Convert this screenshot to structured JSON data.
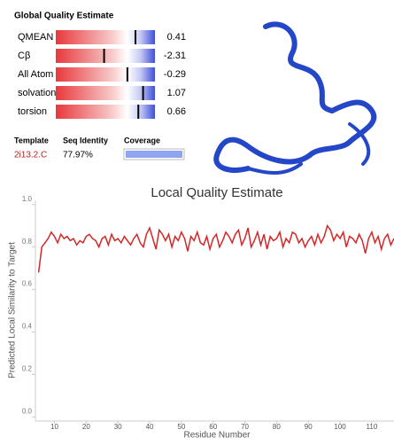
{
  "global_quality": {
    "title": "Global Quality Estimate",
    "zlim": [
      -6.5,
      2.1
    ],
    "rows": [
      {
        "label": "QMEAN",
        "value": 0.41
      },
      {
        "label": "Cβ",
        "value": -2.31
      },
      {
        "label": "All Atom",
        "value": -0.29
      },
      {
        "label": "solvation",
        "value": 1.07
      },
      {
        "label": "torsion",
        "value": 0.66
      }
    ]
  },
  "template": {
    "headers": [
      "Template",
      "Seq Identity",
      "Coverage"
    ],
    "id": "2i13.2.C",
    "identity": "77.97%"
  },
  "chart_data": {
    "type": "line",
    "title": "Local Quality Estimate",
    "x_label": "Residue Number",
    "y_label": "Predicted Local Similarity to Target",
    "xlim": [
      4,
      117
    ],
    "xticks": [
      10,
      20,
      30,
      40,
      50,
      60,
      70,
      80,
      90,
      100,
      110
    ],
    "ylim": [
      -0.02,
      1.02
    ],
    "yticks": [
      {
        "value": 0,
        "label": "0.0"
      },
      0.2,
      0.4,
      0.6,
      0.8,
      {
        "value": 1,
        "label": "1.0"
      }
    ],
    "x": [
      5,
      6,
      7,
      8,
      9,
      10,
      11,
      12,
      13,
      14,
      15,
      16,
      17,
      18,
      19,
      20,
      21,
      22,
      23,
      24,
      25,
      26,
      27,
      28,
      29,
      30,
      31,
      32,
      33,
      34,
      35,
      36,
      37,
      38,
      39,
      40,
      41,
      42,
      43,
      44,
      45,
      46,
      47,
      48,
      49,
      50,
      51,
      52,
      53,
      54,
      55,
      56,
      57,
      58,
      59,
      60,
      61,
      62,
      63,
      64,
      65,
      66,
      67,
      68,
      69,
      70,
      71,
      72,
      73,
      74,
      75,
      76,
      77,
      78,
      79,
      80,
      81,
      82,
      83,
      84,
      85,
      86,
      87,
      88,
      89,
      90,
      91,
      92,
      93,
      94,
      95,
      96,
      97,
      98,
      99,
      100,
      101,
      102,
      103,
      104,
      105,
      106,
      107,
      108,
      109,
      110,
      111,
      112,
      113,
      114,
      115,
      116,
      117
    ],
    "series": [
      {
        "color": "#d62728",
        "values": [
          0.68,
          0.8,
          0.82,
          0.84,
          0.87,
          0.85,
          0.82,
          0.86,
          0.84,
          0.85,
          0.83,
          0.84,
          0.81,
          0.83,
          0.82,
          0.85,
          0.86,
          0.84,
          0.83,
          0.8,
          0.84,
          0.85,
          0.81,
          0.86,
          0.83,
          0.84,
          0.82,
          0.85,
          0.83,
          0.81,
          0.84,
          0.86,
          0.82,
          0.8,
          0.86,
          0.89,
          0.84,
          0.79,
          0.88,
          0.86,
          0.83,
          0.86,
          0.8,
          0.85,
          0.83,
          0.87,
          0.84,
          0.78,
          0.85,
          0.83,
          0.87,
          0.82,
          0.81,
          0.85,
          0.79,
          0.84,
          0.86,
          0.8,
          0.83,
          0.87,
          0.85,
          0.82,
          0.86,
          0.88,
          0.81,
          0.84,
          0.89,
          0.8,
          0.83,
          0.87,
          0.81,
          0.86,
          0.79,
          0.85,
          0.83,
          0.84,
          0.87,
          0.8,
          0.84,
          0.82,
          0.87,
          0.86,
          0.82,
          0.84,
          0.8,
          0.83,
          0.85,
          0.81,
          0.86,
          0.82,
          0.85,
          0.9,
          0.88,
          0.83,
          0.86,
          0.84,
          0.87,
          0.8,
          0.85,
          0.84,
          0.82,
          0.86,
          0.83,
          0.77,
          0.84,
          0.87,
          0.82,
          0.85,
          0.79,
          0.84,
          0.86,
          0.81,
          0.84
        ]
      }
    ]
  }
}
